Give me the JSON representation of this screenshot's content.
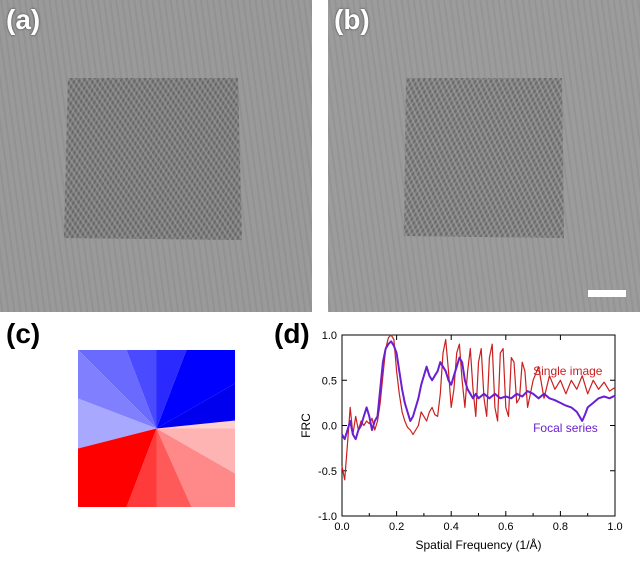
{
  "panels": {
    "a": {
      "label": "(a)"
    },
    "b": {
      "label": "(b)"
    },
    "c": {
      "label": "(c)"
    },
    "d": {
      "label": "(d)"
    }
  },
  "colors": {
    "single_image": "#cc1f1f",
    "focal_series": "#6a1fd0",
    "wheel_blue": "#0000ff",
    "wheel_red": "#ff0000"
  },
  "chart_data": {
    "type": "line",
    "title": "",
    "xlabel": "Spatial Frequency (1/Å)",
    "ylabel": "FRC",
    "xlim": [
      0.0,
      1.0
    ],
    "ylim": [
      -1.0,
      1.0
    ],
    "xticks": [
      "0.0",
      "0.2",
      "0.4",
      "0.6",
      "0.8",
      "1.0"
    ],
    "yticks": [
      "1.0",
      "0.5",
      "0.0",
      "-0.5",
      "-1.0"
    ],
    "grid": false,
    "legend": "inline labels, right",
    "series": [
      {
        "name": "Single image",
        "color": "#cc1f1f",
        "x": [
          0.0,
          0.01,
          0.02,
          0.03,
          0.04,
          0.05,
          0.06,
          0.07,
          0.08,
          0.09,
          0.1,
          0.11,
          0.12,
          0.13,
          0.14,
          0.15,
          0.16,
          0.17,
          0.18,
          0.19,
          0.2,
          0.21,
          0.22,
          0.23,
          0.24,
          0.25,
          0.26,
          0.27,
          0.28,
          0.29,
          0.3,
          0.31,
          0.32,
          0.33,
          0.34,
          0.35,
          0.36,
          0.37,
          0.38,
          0.39,
          0.4,
          0.41,
          0.42,
          0.43,
          0.44,
          0.45,
          0.46,
          0.47,
          0.48,
          0.49,
          0.5,
          0.51,
          0.52,
          0.53,
          0.54,
          0.55,
          0.56,
          0.57,
          0.58,
          0.59,
          0.6,
          0.61,
          0.62,
          0.63,
          0.64,
          0.65,
          0.66,
          0.67,
          0.68,
          0.69,
          0.7,
          0.72,
          0.74,
          0.76,
          0.78,
          0.8,
          0.82,
          0.84,
          0.86,
          0.88,
          0.9,
          0.92,
          0.94,
          0.96,
          0.98,
          1.0
        ],
        "y": [
          -0.45,
          -0.6,
          -0.2,
          0.2,
          -0.1,
          0.1,
          -0.05,
          0.05,
          0.0,
          0.05,
          0.02,
          0.08,
          -0.05,
          0.05,
          0.25,
          0.55,
          0.85,
          0.97,
          1.0,
          0.95,
          0.6,
          0.35,
          0.15,
          0.05,
          -0.02,
          -0.05,
          -0.1,
          -0.05,
          0.0,
          0.15,
          0.1,
          0.05,
          0.15,
          0.2,
          0.12,
          0.1,
          0.35,
          0.8,
          0.95,
          0.6,
          0.2,
          0.4,
          0.8,
          0.9,
          0.5,
          0.2,
          0.6,
          0.85,
          0.4,
          0.1,
          0.7,
          0.85,
          0.3,
          0.1,
          0.75,
          0.9,
          0.2,
          0.05,
          0.8,
          0.85,
          0.2,
          0.1,
          0.75,
          0.7,
          0.25,
          0.3,
          0.7,
          0.6,
          0.2,
          0.35,
          0.5,
          0.65,
          0.3,
          0.55,
          0.4,
          0.5,
          0.35,
          0.5,
          0.4,
          0.55,
          0.35,
          0.5,
          0.4,
          0.48,
          0.38,
          0.42
        ]
      },
      {
        "name": "Focal series",
        "color": "#6a1fd0",
        "x": [
          0.0,
          0.01,
          0.02,
          0.03,
          0.04,
          0.05,
          0.06,
          0.07,
          0.08,
          0.09,
          0.1,
          0.11,
          0.12,
          0.13,
          0.14,
          0.15,
          0.16,
          0.17,
          0.18,
          0.19,
          0.2,
          0.21,
          0.22,
          0.23,
          0.24,
          0.25,
          0.26,
          0.27,
          0.28,
          0.29,
          0.3,
          0.31,
          0.32,
          0.33,
          0.34,
          0.35,
          0.36,
          0.37,
          0.38,
          0.39,
          0.4,
          0.41,
          0.42,
          0.43,
          0.44,
          0.45,
          0.46,
          0.47,
          0.48,
          0.49,
          0.5,
          0.52,
          0.54,
          0.56,
          0.58,
          0.6,
          0.62,
          0.64,
          0.66,
          0.68,
          0.7,
          0.72,
          0.74,
          0.76,
          0.78,
          0.8,
          0.82,
          0.84,
          0.86,
          0.87,
          0.88,
          0.89,
          0.9,
          0.92,
          0.94,
          0.96,
          0.98,
          1.0
        ],
        "y": [
          -0.1,
          -0.15,
          -0.05,
          0.05,
          -0.1,
          -0.15,
          -0.05,
          0.0,
          0.1,
          0.2,
          0.1,
          -0.05,
          0.05,
          0.1,
          0.4,
          0.7,
          0.85,
          0.9,
          0.93,
          0.88,
          0.8,
          0.6,
          0.4,
          0.25,
          0.15,
          0.05,
          0.1,
          0.2,
          0.3,
          0.45,
          0.55,
          0.65,
          0.55,
          0.5,
          0.55,
          0.6,
          0.7,
          0.65,
          0.6,
          0.5,
          0.45,
          0.55,
          0.65,
          0.75,
          0.7,
          0.5,
          0.4,
          0.35,
          0.3,
          0.35,
          0.3,
          0.35,
          0.3,
          0.35,
          0.3,
          0.32,
          0.3,
          0.35,
          0.32,
          0.38,
          0.35,
          0.3,
          0.35,
          0.3,
          0.28,
          0.25,
          0.22,
          0.2,
          0.15,
          0.1,
          0.05,
          0.12,
          0.2,
          0.25,
          0.3,
          0.32,
          0.3,
          0.33
        ]
      }
    ]
  }
}
